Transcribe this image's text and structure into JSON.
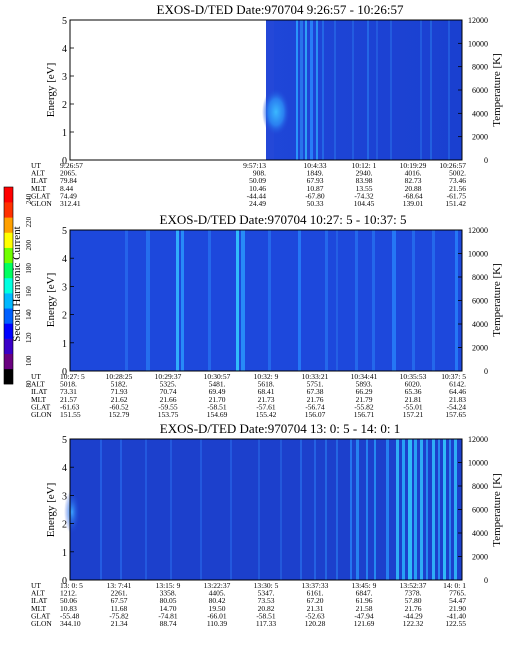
{
  "colorbar": {
    "label": "Second Harmonic Current",
    "ticks": [
      "240",
      "220",
      "200",
      "180",
      "160",
      "140",
      "120",
      "100",
      "80"
    ],
    "colors": [
      "#000000",
      "#6a0080",
      "#3a00c8",
      "#0000ff",
      "#0060ff",
      "#00b8ff",
      "#00ffe0",
      "#00ff60",
      "#70ff00",
      "#ffff00",
      "#ffa000",
      "#ff3000",
      "#ff0000"
    ]
  },
  "chart_data": [
    {
      "type": "heatmap",
      "title": "EXOS-D/TED    Date:970704   9:26:57 - 10:26:57",
      "ylabel": "Energy [eV]",
      "ylim": [
        0,
        5
      ],
      "y_ticks": [
        "0",
        "1",
        "2",
        "3",
        "4",
        "5"
      ],
      "ylabel_right": "Temperature [K]",
      "y2lim": [
        0,
        12000
      ],
      "y2_ticks": [
        "0",
        "2000",
        "4000",
        "6000",
        "8000",
        "10000",
        "12000"
      ],
      "data_gap": [
        "9:26:57",
        "9:57:13"
      ],
      "rows": [
        {
          "name": "UT",
          "values": [
            "9:26:57",
            "9:57:13",
            "10:4:33",
            "10:12: 1",
            "10:19:29",
            "10:26:57"
          ]
        },
        {
          "name": "ALT",
          "values": [
            "2065.",
            "908.",
            "1849.",
            "2940.",
            "4016.",
            "5002."
          ]
        },
        {
          "name": "ILAT",
          "values": [
            "79.84",
            "50.09",
            "67.93",
            "83.98",
            "82.73",
            "73.46"
          ]
        },
        {
          "name": "MLT",
          "values": [
            "8.44",
            "10.46",
            "10.87",
            "13.55",
            "20.88",
            "21.56"
          ]
        },
        {
          "name": "GLAT",
          "values": [
            "74.49",
            "-44.44",
            "-67.80",
            "-74.32",
            "-68.64",
            "-61.75"
          ]
        },
        {
          "name": "GLON",
          "values": [
            "312.41",
            "24.49",
            "50.33",
            "104.45",
            "139.01",
            "151.42"
          ]
        }
      ]
    },
    {
      "type": "heatmap",
      "title": "EXOS-D/TED    Date:970704   10:27: 5 - 10:37: 5",
      "ylabel": "Energy [eV]",
      "ylim": [
        0,
        5
      ],
      "y_ticks": [
        "0",
        "1",
        "2",
        "3",
        "4",
        "5"
      ],
      "ylabel_right": "Temperature [K]",
      "y2lim": [
        0,
        12000
      ],
      "y2_ticks": [
        "0",
        "2000",
        "4000",
        "6000",
        "8000",
        "10000",
        "12000"
      ],
      "rows": [
        {
          "name": "UT",
          "values": [
            "10:27: 5",
            "10:28:25",
            "10:29:37",
            "10:30:57",
            "10:32: 9",
            "10:33:21",
            "10:34:41",
            "10:35:53",
            "10:37: 5"
          ]
        },
        {
          "name": "ALT",
          "values": [
            "5018.",
            "5182.",
            "5325.",
            "5481.",
            "5618.",
            "5751.",
            "5893.",
            "6020.",
            "6142."
          ]
        },
        {
          "name": "ILAT",
          "values": [
            "73.31",
            "71.93",
            "70.74",
            "69.49",
            "68.41",
            "67.38",
            "66.29",
            "65.36",
            "64.46"
          ]
        },
        {
          "name": "MLT",
          "values": [
            "21.57",
            "21.62",
            "21.66",
            "21.70",
            "21.73",
            "21.76",
            "21.79",
            "21.81",
            "21.83"
          ]
        },
        {
          "name": "GLAT",
          "values": [
            "-61.63",
            "-60.52",
            "-59.55",
            "-58.51",
            "-57.61",
            "-56.74",
            "-55.82",
            "-55.01",
            "-54.24"
          ]
        },
        {
          "name": "GLON",
          "values": [
            "151.55",
            "152.79",
            "153.75",
            "154.69",
            "155.42",
            "156.07",
            "156.71",
            "157.21",
            "157.65"
          ]
        }
      ]
    },
    {
      "type": "heatmap",
      "title": "EXOS-D/TED    Date:970704   13: 0: 5 - 14: 0: 1",
      "ylabel": "Energy [eV]",
      "ylim": [
        0,
        5
      ],
      "y_ticks": [
        "0",
        "1",
        "2",
        "3",
        "4",
        "5"
      ],
      "ylabel_right": "Temperature [K]",
      "y2lim": [
        0,
        12000
      ],
      "y2_ticks": [
        "0",
        "2000",
        "4000",
        "6000",
        "8000",
        "10000",
        "12000"
      ],
      "rows": [
        {
          "name": "UT",
          "values": [
            "13: 0: 5",
            "13: 7:41",
            "13:15: 9",
            "13:22:37",
            "13:30: 5",
            "13:37:33",
            "13:45: 9",
            "13:52:37",
            "14: 0: 1"
          ]
        },
        {
          "name": "ALT",
          "values": [
            "1212.",
            "2261.",
            "3358.",
            "4405.",
            "5347.",
            "6161.",
            "6847.",
            "7378.",
            "7765."
          ]
        },
        {
          "name": "ILAT",
          "values": [
            "50.06",
            "67.57",
            "80.05",
            "80.42",
            "73.53",
            "67.20",
            "61.96",
            "57.80",
            "54.47"
          ]
        },
        {
          "name": "MLT",
          "values": [
            "10.83",
            "11.68",
            "14.70",
            "19.50",
            "20.82",
            "21.31",
            "21.58",
            "21.76",
            "21.90"
          ]
        },
        {
          "name": "GLAT",
          "values": [
            "-55.48",
            "-75.82",
            "-74.81",
            "-66.01",
            "-58.51",
            "-52.63",
            "-47.94",
            "-44.29",
            "-41.40"
          ]
        },
        {
          "name": "GLON",
          "values": [
            "344.10",
            "21.34",
            "88.74",
            "110.39",
            "117.33",
            "120.28",
            "121.69",
            "122.32",
            "122.55"
          ]
        }
      ]
    }
  ]
}
